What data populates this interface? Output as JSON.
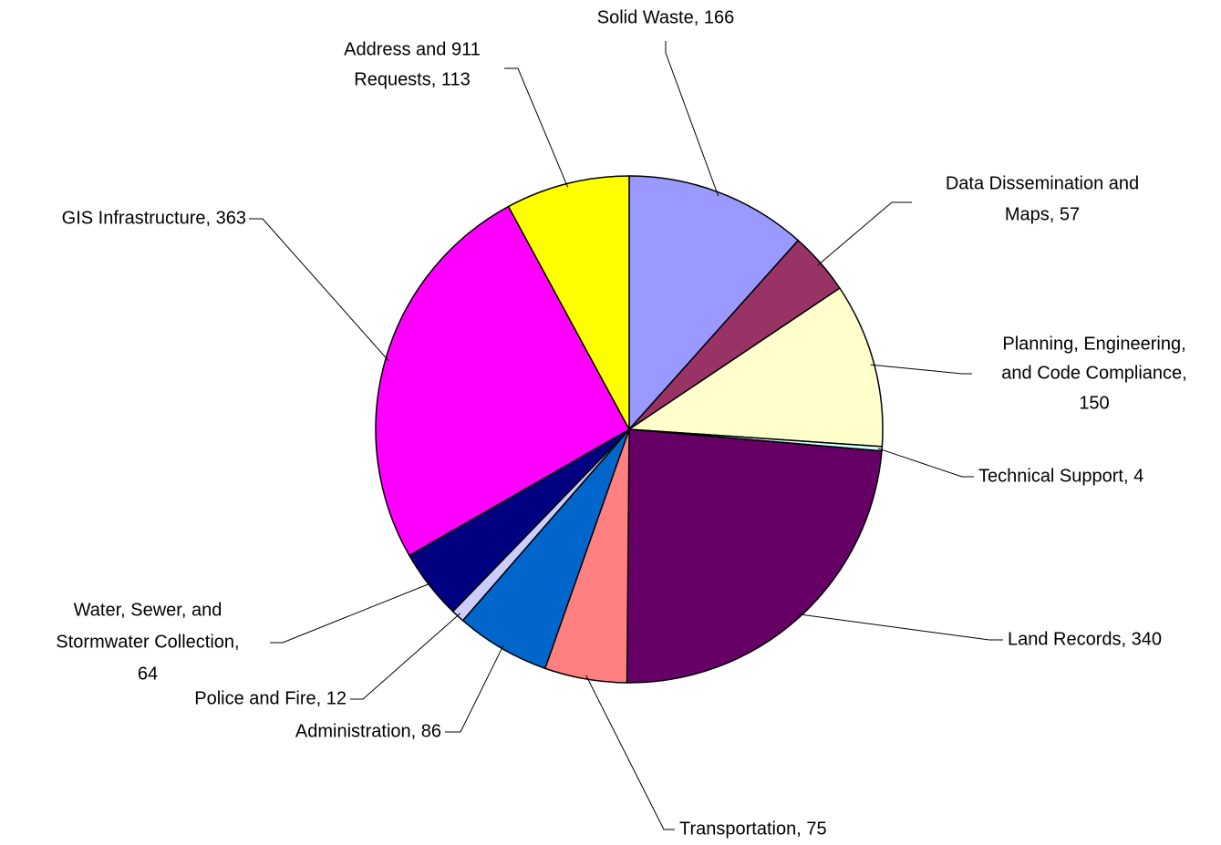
{
  "chart_data": {
    "type": "pie",
    "values": [
      166,
      57,
      150,
      4,
      340,
      75,
      86,
      12,
      64,
      363,
      113
    ],
    "value_labels": [
      [
        "Solid Waste, 166"
      ],
      [
        "Data Dissemination and",
        "Maps, 57"
      ],
      [
        "Planning, Engineering,",
        "and Code Compliance,",
        "150"
      ],
      [
        "Technical Support, 4"
      ],
      [
        "Land Records, 340"
      ],
      [
        "Transportation, 75"
      ],
      [
        "Administration, 86"
      ],
      [
        "Police and Fire, 12"
      ],
      [
        "Water, Sewer, and",
        "Stormwater Collection,",
        "64"
      ],
      [
        "GIS Infrastructure, 363"
      ],
      [
        "Address and 911",
        "Requests, 113"
      ]
    ],
    "colors": [
      "#9999ff",
      "#993366",
      "#ffffcc",
      "#ccffff",
      "#660066",
      "#ff8080",
      "#0066cc",
      "#ccccff",
      "#000080",
      "#ff00ff",
      "#ffff00"
    ]
  }
}
